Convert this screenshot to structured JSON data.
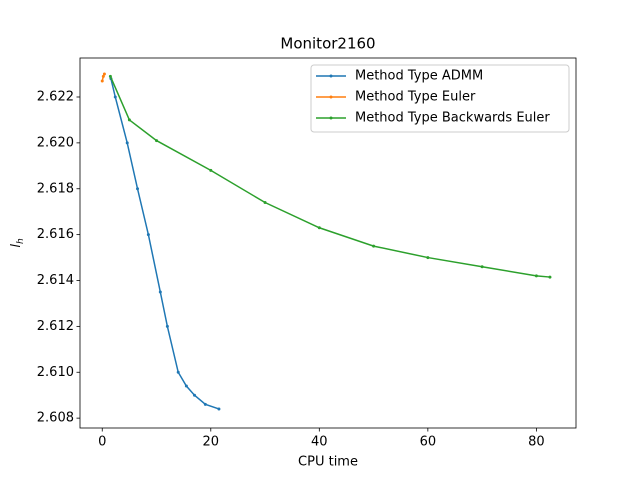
{
  "chart_data": {
    "type": "line",
    "title": "Monitor2160",
    "xlabel": "CPU time",
    "ylabel": "l",
    "ylabel_sub": "h",
    "xlim": [
      -4.1,
      87.3
    ],
    "ylim": [
      2.60757,
      2.6237
    ],
    "xticks": [
      0,
      20,
      40,
      60,
      80
    ],
    "yticks": [
      2.608,
      {
        "value": 2.61,
        "label": "2.610"
      },
      2.612,
      2.614,
      2.616,
      2.618,
      {
        "value": 2.62,
        "label": "2.620"
      },
      2.622
    ],
    "legend": "upper right",
    "series": [
      {
        "name": "Method Type ADMM",
        "color": "#1f77b4",
        "x": [
          1.6,
          2.4,
          4.6,
          6.5,
          8.5,
          10.7,
          12,
          14,
          15.5,
          17,
          19,
          21.5
        ],
        "values": [
          2.6228,
          2.622,
          2.62,
          2.618,
          2.616,
          2.6135,
          2.612,
          2.61,
          2.6094,
          2.609,
          2.6086,
          2.6084
        ]
      },
      {
        "name": "Method Type Euler",
        "color": "#ff7f0e",
        "x": [
          0,
          0.2,
          0.4
        ],
        "values": [
          2.6227,
          2.6229,
          2.623
        ]
      },
      {
        "name": "Method Type Backwards Euler",
        "color": "#2ca02c",
        "x": [
          1.5,
          5,
          10,
          20,
          30,
          40,
          50,
          60,
          70,
          80,
          82.5
        ],
        "values": [
          2.6229,
          2.621,
          2.6201,
          2.6188,
          2.6174,
          2.6163,
          2.6155,
          2.615,
          2.6146,
          2.6142,
          2.61415
        ]
      }
    ]
  }
}
